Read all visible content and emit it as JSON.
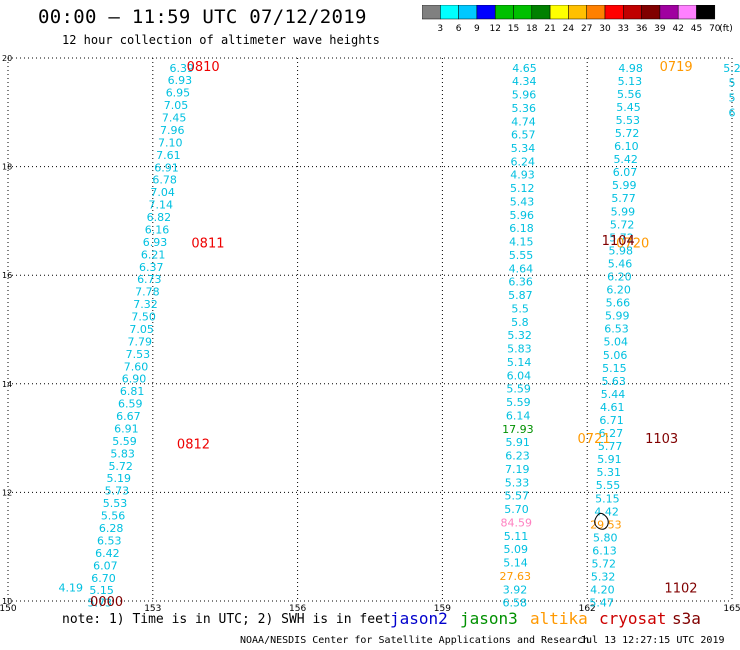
{
  "header": {
    "title": "00:00 — 11:59 UTC 07/12/2019",
    "subtitle": "12 hour collection of altimeter wave heights"
  },
  "colorbar": {
    "unit": "(ft)",
    "ticks": [
      "3",
      "6",
      "9",
      "12",
      "15",
      "18",
      "21",
      "24",
      "27",
      "30",
      "33",
      "36",
      "39",
      "42",
      "45",
      "70"
    ],
    "colors": [
      "#808080",
      "#00ffff",
      "#00c8ff",
      "#0000ff",
      "#00c000",
      "#00c000",
      "#008000",
      "#ffff00",
      "#ffc000",
      "#ff8000",
      "#ff0000",
      "#c00000",
      "#800000",
      "#a000a0",
      "#ff80ff",
      "#000000"
    ]
  },
  "footer": {
    "note": "note: 1) Time is in UTC; 2) SWH is in feet",
    "satellites": [
      {
        "name": "jason2",
        "color": "#0000cc"
      },
      {
        "name": "jason3",
        "color": "#009000"
      },
      {
        "name": "altika",
        "color": "#ff9900"
      },
      {
        "name": "cryosat",
        "color": "#cc0000"
      },
      {
        "name": "s3a",
        "color": "#800000"
      }
    ],
    "credit": "NOAA/NESDIS Center for Satellite Applications and Research",
    "timestamp": "Jul 13 12:27:15 UTC 2019"
  },
  "chart_data": {
    "type": "scatter",
    "xlim": [
      150,
      165
    ],
    "ylim": [
      10,
      20
    ],
    "x_ticks": [
      "150",
      "153",
      "156",
      "159",
      "162",
      "165"
    ],
    "y_ticks": [
      "10",
      "12",
      "14",
      "16",
      "18",
      "20"
    ],
    "grid": true,
    "grid_style": "dotted",
    "tracks": [
      {
        "satellite": "s3a",
        "color": "#00c0e0",
        "x_start": 153.6,
        "x_end": 151.9,
        "y_start": 19.82,
        "y_end": 9.97,
        "values": [
          "6.39",
          "6.93",
          "6.95",
          "7.05",
          "7.45",
          "7.96",
          "7.10",
          "7.61",
          "6.91",
          "6.78",
          "7.04",
          "7.14",
          "6.82",
          "6.16",
          "6.93",
          "6.21",
          "6.37",
          "6.73",
          "7.78",
          "7.32",
          "7.50",
          "7.05",
          "7.79",
          "7.53",
          "7.60",
          "6.90",
          "6.81",
          "6.59",
          "6.67",
          "6.91",
          "5.59",
          "5.83",
          "5.72",
          "5.19",
          "5.73",
          "5.53",
          "5.56",
          "6.28",
          "6.53",
          "6.42",
          "6.07",
          "6.70",
          "5.15",
          "5.73"
        ]
      },
      {
        "satellite": "altika",
        "color": "#00c0e0",
        "x_start": 160.7,
        "x_end": 160.5,
        "y_start": 19.82,
        "y_end": 9.97,
        "values": [
          "4.65",
          "4.34",
          "5.96",
          "5.36",
          "4.74",
          "6.57",
          "5.34",
          "6.24",
          "4.93",
          "5.12",
          "5.43",
          "5.96",
          "6.18",
          "4.15",
          "5.55",
          "4.64",
          "6.36",
          "5.87",
          "5.5",
          "5.8",
          "5.32",
          "5.83",
          "5.14",
          "6.04",
          "5.59",
          "5.59",
          "6.14",
          "17.93",
          "5.91",
          "6.23",
          "7.19",
          "5.33",
          "5.57",
          "5.70",
          "84.59",
          "5.11",
          "5.09",
          "5.14",
          "27.63",
          "3.92",
          "6.58"
        ]
      },
      {
        "satellite": "cryosat",
        "color": "#00c0e0",
        "x_start": 162.9,
        "x_end": 162.3,
        "y_start": 19.82,
        "y_end": 9.97,
        "values": [
          "4.98",
          "5.13",
          "5.56",
          "5.45",
          "5.53",
          "5.72",
          "6.10",
          "5.42",
          "6.07",
          "5.99",
          "5.77",
          "5.99",
          "5.72",
          "5.72",
          "5.98",
          "5.46",
          "6.20",
          "6.20",
          "5.66",
          "5.99",
          "6.53",
          "5.04",
          "5.06",
          "5.15",
          "5.63",
          "5.44",
          "4.61",
          "6.71",
          "6.27",
          "5.77",
          "5.91",
          "5.31",
          "5.55",
          "5.15",
          "4.42",
          "29.53",
          "5.80",
          "6.13",
          "5.72",
          "5.32",
          "4.20",
          "5.47"
        ]
      },
      {
        "satellite": "jason3",
        "color": "#00c0e0",
        "x_start": 165.0,
        "x_end": 165.0,
        "y_start": 19.82,
        "y_end": 19.0,
        "values": [
          "5.2",
          "5",
          "5",
          "6"
        ]
      },
      {
        "satellite": "jason2",
        "color": "#00c0e0",
        "x_start": 151.3,
        "x_end": 151.3,
        "y_start": 10.25,
        "y_end": 10.25,
        "values": [
          "4.19"
        ]
      }
    ],
    "time_labels": [
      {
        "text": "0810",
        "x": 153.7,
        "y": 19.85,
        "color": "#ee0000"
      },
      {
        "text": "0811",
        "x": 153.8,
        "y": 16.6,
        "color": "#ee0000"
      },
      {
        "text": "0812",
        "x": 153.5,
        "y": 12.9,
        "color": "#ee0000"
      },
      {
        "text": "0000",
        "x": 151.7,
        "y": 10.0,
        "color": "#800000"
      },
      {
        "text": "0719",
        "x": 163.5,
        "y": 19.85,
        "color": "#ff9900"
      },
      {
        "text": "0720",
        "x": 162.6,
        "y": 16.6,
        "color": "#ff9900"
      },
      {
        "text": "1104",
        "x": 162.3,
        "y": 16.65,
        "color": "#800000"
      },
      {
        "text": "0721",
        "x": 161.8,
        "y": 13.0,
        "color": "#ff9900"
      },
      {
        "text": "1103",
        "x": 163.2,
        "y": 13.0,
        "color": "#800000"
      },
      {
        "text": "1102",
        "x": 163.6,
        "y": 10.25,
        "color": "#800000"
      }
    ]
  }
}
